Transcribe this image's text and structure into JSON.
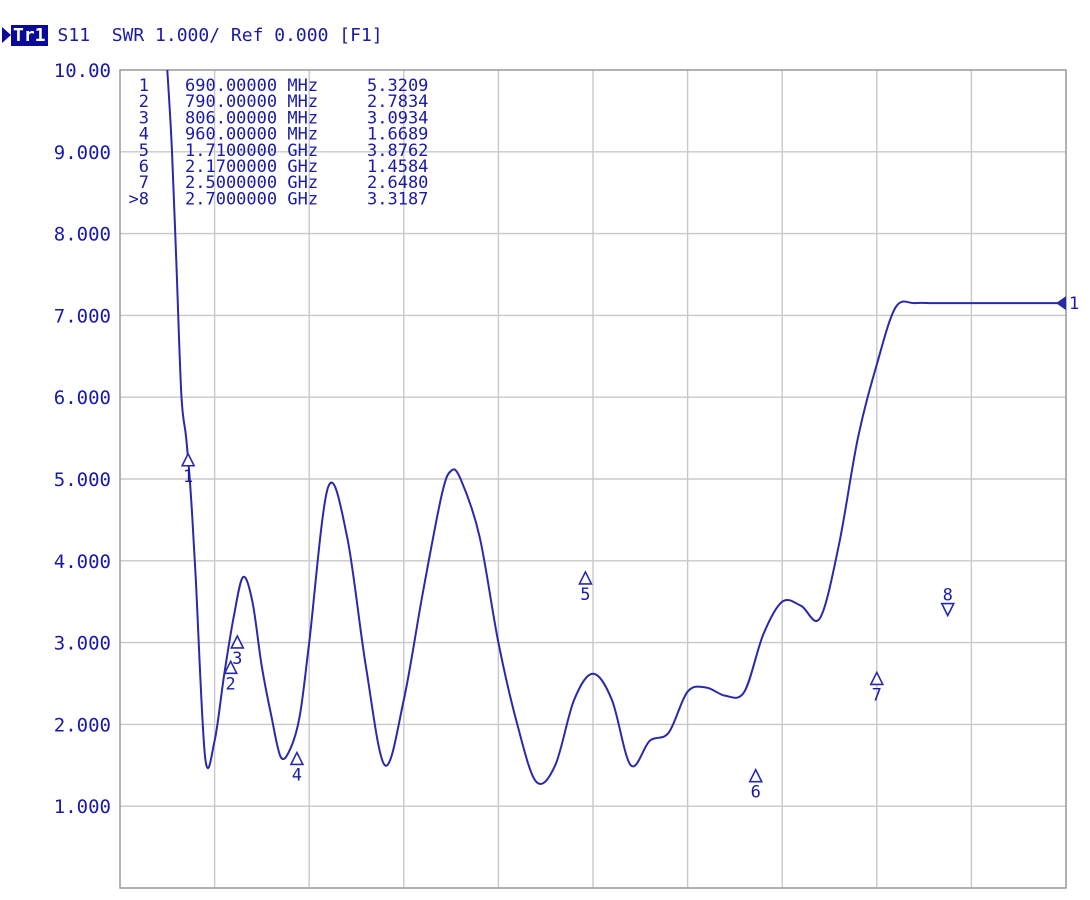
{
  "header": {
    "trace": "Tr1",
    "text": "S11  SWR 1.000/ Ref 0.000 [F1]"
  },
  "chart_data": {
    "type": "line",
    "title": "S11 SWR 1.000/ Ref 0.000 [F1]",
    "xlabel": "",
    "ylabel": "",
    "xlim": [
      0,
      10
    ],
    "ylim": [
      0,
      10
    ],
    "x_divisions": 10,
    "y_divisions": 10,
    "grid": true,
    "y_tick_labels": [
      "10.00",
      "9.000",
      "8.000",
      "7.000",
      "6.000",
      "5.000",
      "4.000",
      "3.000",
      "2.000",
      "1.000"
    ],
    "y_tick_values": [
      10,
      9,
      8,
      7,
      6,
      5,
      4,
      3,
      2,
      1
    ],
    "colors": {
      "trace": "#2a2aa8",
      "grid": "#c8c8c8",
      "text": "#1a1aa8"
    },
    "series": [
      {
        "x": [
          0.5,
          0.55,
          0.6,
          0.65,
          0.7,
          0.75,
          0.8,
          0.9,
          1.0,
          1.1,
          1.2,
          1.3,
          1.4,
          1.5,
          1.6,
          1.7,
          1.8,
          1.9,
          2.0,
          2.2,
          2.4,
          2.6,
          2.8,
          3.0,
          3.2,
          3.4,
          3.5,
          3.6,
          3.8,
          4.0,
          4.2,
          4.4,
          4.6,
          4.8,
          5.0,
          5.2,
          5.4,
          5.6,
          5.8,
          6.0,
          6.2,
          6.4,
          6.6,
          6.8,
          7.0,
          7.2,
          7.4,
          7.6,
          7.8,
          8.0,
          8.2,
          8.4,
          8.6,
          8.8,
          8.95,
          9.0,
          9.2,
          9.4,
          9.6,
          9.8,
          10.0
        ],
        "y": [
          10.0,
          9.0,
          7.5,
          6.0,
          5.5,
          4.8,
          3.8,
          1.6,
          1.8,
          2.6,
          3.3,
          3.8,
          3.5,
          2.7,
          2.1,
          1.6,
          1.7,
          2.1,
          3.0,
          4.9,
          4.3,
          2.7,
          1.5,
          2.3,
          3.6,
          4.8,
          5.1,
          5.0,
          4.3,
          3.0,
          2.0,
          1.3,
          1.5,
          2.3,
          2.62,
          2.3,
          1.5,
          1.8,
          1.9,
          2.4,
          2.45,
          2.35,
          2.4,
          3.1,
          3.5,
          3.45,
          3.3,
          4.2,
          5.5,
          6.4,
          7.1,
          7.15,
          7.15,
          7.15,
          7.15,
          7.15,
          7.15,
          7.15,
          7.15,
          7.15,
          7.15
        ]
      }
    ],
    "markers": [
      {
        "num": "1",
        "freq": "690.00000 MHz",
        "value": "5.3209",
        "x": 0.72,
        "y": 5.3209,
        "label_dir": "below",
        "active": false
      },
      {
        "num": "2",
        "freq": "790.00000 MHz",
        "value": "2.7834",
        "x": 1.17,
        "y": 2.7834,
        "label_dir": "below",
        "active": false
      },
      {
        "num": "3",
        "freq": "806.00000 MHz",
        "value": "3.0934",
        "x": 1.24,
        "y": 3.0934,
        "label_dir": "below",
        "active": false
      },
      {
        "num": "4",
        "freq": "960.00000 MHz",
        "value": "1.6689",
        "x": 1.87,
        "y": 1.6689,
        "label_dir": "below",
        "active": false
      },
      {
        "num": "5",
        "freq": "1.7100000 GHz",
        "value": "3.8762",
        "x": 4.92,
        "y": 3.8762,
        "label_dir": "below",
        "active": false
      },
      {
        "num": "6",
        "freq": "2.1700000 GHz",
        "value": "1.4584",
        "x": 6.72,
        "y": 1.4584,
        "label_dir": "below",
        "active": false
      },
      {
        "num": "7",
        "freq": "2.5000000 GHz",
        "value": "2.6480",
        "x": 8.0,
        "y": 2.648,
        "label_dir": "below",
        "active": false
      },
      {
        "num": "8",
        "freq": "2.7000000 GHz",
        "value": "3.3187",
        "x": 8.75,
        "y": 3.3187,
        "label_dir": "above",
        "active": true
      }
    ],
    "marker_table_prefix_active": ">",
    "reference": {
      "label": "1",
      "y": 7.15
    }
  }
}
